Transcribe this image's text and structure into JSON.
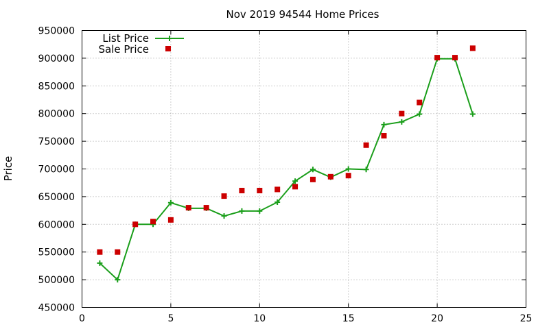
{
  "chart_data": {
    "type": "line",
    "title": "Nov 2019 94544 Home Prices",
    "xlabel": "",
    "ylabel": "Price",
    "xlim": [
      0,
      25
    ],
    "ylim": [
      450000,
      950000
    ],
    "xticks": [
      0,
      5,
      10,
      15,
      20,
      25
    ],
    "yticks": [
      450000,
      500000,
      550000,
      600000,
      650000,
      700000,
      750000,
      800000,
      850000,
      900000,
      950000
    ],
    "grid": true,
    "legend_position": "top-left",
    "series": [
      {
        "name": "List Price",
        "style": "line-with-plus-markers",
        "color": "#1a9e1a",
        "points": [
          [
            1,
            530000
          ],
          [
            2,
            500000
          ],
          [
            3,
            600000
          ],
          [
            4,
            600000
          ],
          [
            5,
            639000
          ],
          [
            6,
            629000
          ],
          [
            7,
            629000
          ],
          [
            8,
            615000
          ],
          [
            9,
            624000
          ],
          [
            10,
            624000
          ],
          [
            11,
            640000
          ],
          [
            12,
            678000
          ],
          [
            13,
            699000
          ],
          [
            14,
            685000
          ],
          [
            15,
            700000
          ],
          [
            16,
            699000
          ],
          [
            17,
            780000
          ],
          [
            18,
            785000
          ],
          [
            19,
            799000
          ],
          [
            20,
            899000
          ],
          [
            21,
            899000
          ],
          [
            22,
            799000
          ]
        ]
      },
      {
        "name": "Sale Price",
        "style": "square-markers",
        "color": "#cc0000",
        "points": [
          [
            1,
            550000
          ],
          [
            2,
            550000
          ],
          [
            3,
            600000
          ],
          [
            4,
            605000
          ],
          [
            5,
            608000
          ],
          [
            6,
            630000
          ],
          [
            7,
            630000
          ],
          [
            8,
            651000
          ],
          [
            9,
            661000
          ],
          [
            10,
            661000
          ],
          [
            11,
            663000
          ],
          [
            12,
            668000
          ],
          [
            13,
            681000
          ],
          [
            14,
            686000
          ],
          [
            15,
            688000
          ],
          [
            16,
            743000
          ],
          [
            17,
            760000
          ],
          [
            18,
            800000
          ],
          [
            19,
            820000
          ],
          [
            20,
            901000
          ],
          [
            21,
            901000
          ],
          [
            22,
            918000
          ]
        ]
      }
    ]
  }
}
